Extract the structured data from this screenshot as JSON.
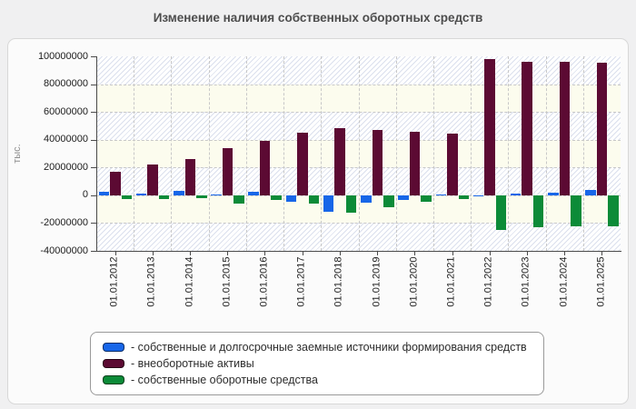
{
  "title": "Изменение наличия собственных оборотных средств",
  "chart_data": {
    "type": "bar",
    "title": "Изменение наличия собственных оборотных средств",
    "ylabel": "тыс.",
    "xlabel": "",
    "ylim": [
      -40000000,
      100000000
    ],
    "ytick_step": 20000000,
    "ytick_labels": [
      "100000000",
      "80000000",
      "60000000",
      "40000000",
      "20000000",
      "0",
      "-20000000",
      "-40000000"
    ],
    "grid": "dashed",
    "legend_position": "bottom",
    "categories": [
      "01.01.2012",
      "01.01.2013",
      "01.01.2014",
      "01.01.2015",
      "01.01.2016",
      "01.01.2017",
      "01.01.2018",
      "01.01.2019",
      "01.01.2020",
      "01.01.2021",
      "01.01.2022",
      "01.01.2023",
      "01.01.2024",
      "01.01.2025"
    ],
    "series": [
      {
        "name": "- собственные и долгосрочные заемные источники формирования средств",
        "color": "#1766e8",
        "values": [
          2600000,
          1500000,
          3000000,
          500000,
          2600000,
          -4800000,
          -11600000,
          -5500000,
          -3300000,
          600000,
          -600000,
          1500000,
          1700000,
          3900000
        ]
      },
      {
        "name": "- внеоборотные активы",
        "color": "#5c0a33",
        "values": [
          17000000,
          21900000,
          26200000,
          34000000,
          39300000,
          44800000,
          48500000,
          46800000,
          45500000,
          44200000,
          98100000,
          95800000,
          96000000,
          95300000
        ]
      },
      {
        "name": "- собственные оборотные средства",
        "color": "#0c8b38",
        "values": [
          -2900000,
          -2900000,
          -1800000,
          -6200000,
          -3700000,
          -6200000,
          -12600000,
          -8300000,
          -4800000,
          -2600000,
          -25200000,
          -23000000,
          -22500000,
          -22500000
        ]
      }
    ]
  }
}
